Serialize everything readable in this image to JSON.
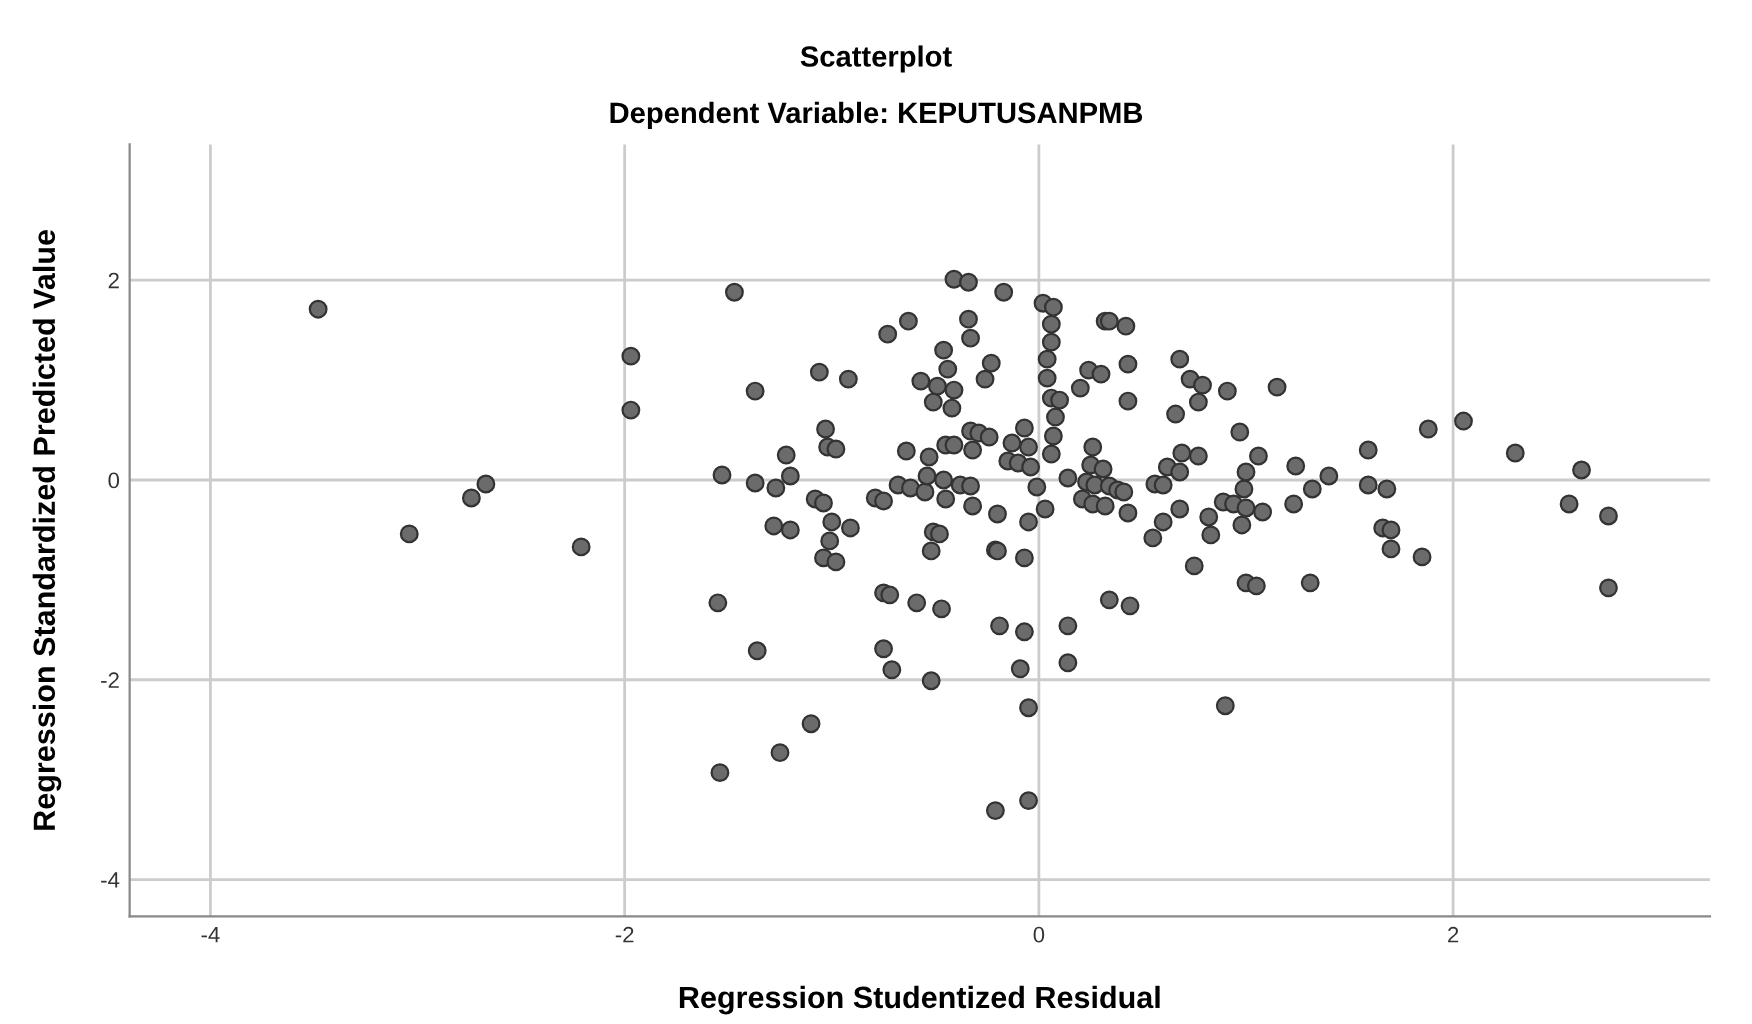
{
  "chart_data": {
    "type": "scatter",
    "title": "Scatterplot",
    "subtitle": "Dependent Variable: KEPUTUSANPMB",
    "xlabel": "Regression Studentized Residual",
    "ylabel": "Regression Standardized Predicted Value",
    "xlim": [
      -4.39,
      3.24
    ],
    "ylim": [
      -4.37,
      3.36
    ],
    "xticks": [
      -4,
      -2,
      0,
      2
    ],
    "yticks": [
      -4,
      -2,
      0,
      2
    ],
    "grid": true,
    "marker": "circle",
    "series": [
      {
        "color": "#6b6b6b",
        "x": [
          -3.48,
          -3.04,
          -2.74,
          -2.67,
          -2.21,
          -1.97,
          -1.97,
          -1.47,
          -1.55,
          -1.54,
          -1.53,
          -1.37,
          -1.37,
          -1.36,
          -1.27,
          -1.28,
          -1.25,
          -1.22,
          -1.2,
          -1.2,
          -1.1,
          -1.08,
          -1.06,
          -1.04,
          -1.03,
          -1.02,
          -0.98,
          -1.0,
          -1.01,
          -1.04,
          -0.98,
          -0.92,
          -0.91,
          -0.79,
          -0.75,
          -0.75,
          -0.72,
          -0.75,
          -0.71,
          -0.73,
          -0.68,
          -0.64,
          -0.63,
          -0.62,
          -0.59,
          -0.57,
          -0.55,
          -0.54,
          -0.53,
          -0.52,
          -0.52,
          -0.51,
          -0.48,
          -0.51,
          -0.49,
          -0.47,
          -0.46,
          -0.44,
          -0.45,
          -0.46,
          -0.45,
          -0.42,
          -0.41,
          -0.41,
          -0.41,
          -0.34,
          -0.34,
          -0.33,
          -0.38,
          -0.33,
          -0.32,
          -0.33,
          -0.29,
          -0.32,
          -0.26,
          -0.23,
          -0.24,
          -0.2,
          -0.21,
          -0.2,
          -0.19,
          -0.17,
          -0.21,
          -0.15,
          -0.13,
          -0.1,
          -0.07,
          -0.05,
          -0.04,
          -0.07,
          -0.07,
          -0.09,
          -0.05,
          -0.05,
          -0.05,
          -0.01,
          0.02,
          0.07,
          0.06,
          0.06,
          0.04,
          0.04,
          0.06,
          0.1,
          0.08,
          0.07,
          0.06,
          0.03,
          0.14,
          0.14,
          0.14,
          0.2,
          0.24,
          0.3,
          0.26,
          0.25,
          0.31,
          0.23,
          0.27,
          0.21,
          0.26,
          0.32,
          0.34,
          0.38,
          0.41,
          0.43,
          0.32,
          0.34,
          0.42,
          0.43,
          0.43,
          0.34,
          0.44,
          0.55,
          0.56,
          0.6,
          0.6,
          0.62,
          0.66,
          0.68,
          0.68,
          0.68,
          0.69,
          0.73,
          0.75,
          0.77,
          0.77,
          0.79,
          0.82,
          0.83,
          0.89,
          0.9,
          0.91,
          0.94,
          0.97,
          0.98,
          0.99,
          1.0,
          1.0,
          1.0,
          1.05,
          1.06,
          1.08,
          1.15,
          1.23,
          1.24,
          1.32,
          1.31,
          1.4,
          1.59,
          1.59,
          1.68,
          1.66,
          1.7,
          1.7,
          1.85,
          1.88,
          2.05,
          2.3,
          2.56,
          2.62,
          2.75,
          2.75
        ],
        "values": [
          1.71,
          -0.54,
          -0.18,
          -0.04,
          -0.67,
          1.24,
          0.7,
          1.88,
          -1.23,
          -2.93,
          0.05,
          0.89,
          -0.03,
          -1.71,
          -0.08,
          -0.46,
          -2.73,
          0.25,
          0.04,
          -0.5,
          -2.44,
          -0.19,
          1.08,
          -0.23,
          0.51,
          0.33,
          0.31,
          -0.42,
          -0.61,
          -0.78,
          -0.82,
          1.01,
          -0.48,
          -0.18,
          -0.21,
          -1.13,
          -1.15,
          -1.69,
          -1.9,
          1.46,
          -0.05,
          0.29,
          1.59,
          -0.08,
          -1.23,
          0.99,
          -0.12,
          0.04,
          0.23,
          -2.01,
          -0.71,
          -0.52,
          -0.54,
          0.78,
          0.94,
          -1.29,
          1.3,
          1.11,
          0.35,
          0.0,
          -0.19,
          0.72,
          0.9,
          0.35,
          2.01,
          1.98,
          1.61,
          1.42,
          -0.05,
          -0.06,
          -0.26,
          0.49,
          0.47,
          0.3,
          1.01,
          1.17,
          0.43,
          -0.34,
          -0.7,
          -0.71,
          -1.46,
          1.88,
          -3.31,
          0.19,
          0.37,
          0.17,
          0.52,
          0.33,
          0.13,
          -0.78,
          -1.52,
          -1.89,
          -2.28,
          -3.21,
          -0.42,
          -0.07,
          1.77,
          1.73,
          1.56,
          1.38,
          1.21,
          1.02,
          0.82,
          0.8,
          0.63,
          0.44,
          0.26,
          -0.29,
          0.02,
          -1.46,
          -1.83,
          0.92,
          1.1,
          1.06,
          0.33,
          0.15,
          0.11,
          -0.02,
          -0.05,
          -0.19,
          -0.24,
          -0.26,
          -0.06,
          -0.1,
          -0.12,
          -0.33,
          1.59,
          1.59,
          1.54,
          1.16,
          0.79,
          -1.2,
          -1.26,
          -0.58,
          -0.04,
          -0.05,
          -0.42,
          0.13,
          0.66,
          1.21,
          0.08,
          -0.29,
          0.27,
          1.01,
          -0.86,
          0.78,
          0.24,
          0.95,
          -0.37,
          -0.55,
          -0.22,
          -2.26,
          0.89,
          -0.24,
          0.48,
          -0.45,
          -0.09,
          -0.28,
          0.08,
          -1.03,
          -1.06,
          0.24,
          -0.32,
          0.93,
          -0.24,
          0.14,
          -0.09,
          -1.03,
          0.04,
          0.3,
          -0.05,
          -0.09,
          -0.48,
          -0.5,
          -0.69,
          -0.77,
          0.51,
          0.59,
          0.27,
          -0.24,
          0.1,
          -0.36,
          -1.08
        ]
      }
    ]
  }
}
